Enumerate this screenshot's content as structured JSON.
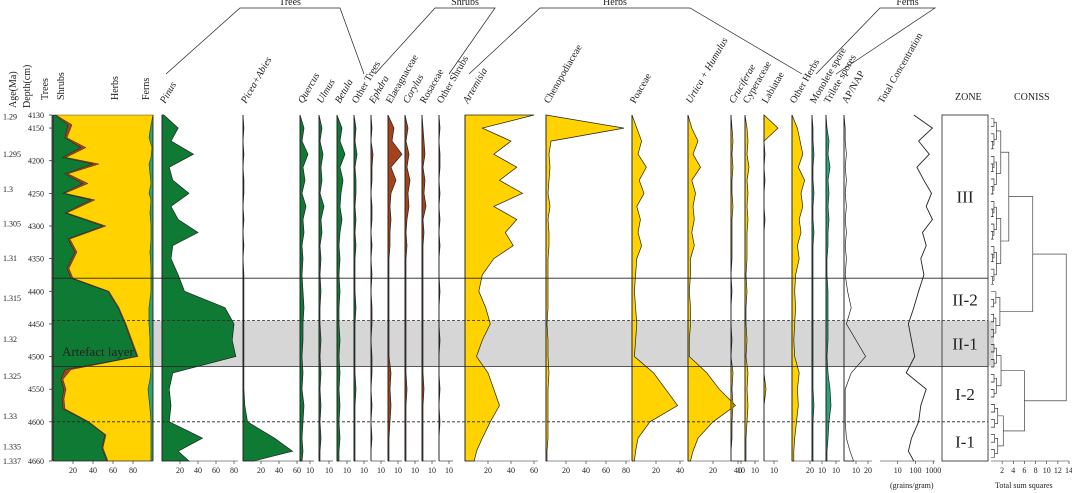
{
  "colors": {
    "trees": "#0f7a33",
    "shrubs": "#a5421b",
    "herbs": "#ffd200",
    "ferns": "#2aa37a",
    "artefact_band": "#bdbdbd",
    "line": "#222222"
  },
  "chart_data": {
    "type": "pollen-stratigraphic-diagram",
    "depth_axis": {
      "label": "Depth(cm)",
      "range": [
        4130,
        4660
      ],
      "ticks": [
        4130,
        4150,
        4200,
        4250,
        4300,
        4350,
        4400,
        4450,
        4500,
        4550,
        4600,
        4660
      ]
    },
    "age_axis": {
      "label": "Age(Ma)",
      "ticks": [
        {
          "label": "1.29",
          "depth": 4132
        },
        {
          "label": "1.295",
          "depth": 4190
        },
        {
          "label": "1.3",
          "depth": 4243
        },
        {
          "label": "1.305",
          "depth": 4296
        },
        {
          "label": "1.31",
          "depth": 4349
        },
        {
          "label": "1.315",
          "depth": 4410
        },
        {
          "label": "1.32",
          "depth": 4473
        },
        {
          "label": "1.325",
          "depth": 4530
        },
        {
          "label": "1.33",
          "depth": 4591
        },
        {
          "label": "1.335",
          "depth": 4638
        },
        {
          "label": "1.337",
          "depth": 4660
        }
      ]
    },
    "groups": [
      {
        "key": "trees",
        "label": "Trees"
      },
      {
        "key": "shrubs",
        "label": "Shrubs"
      },
      {
        "key": "herbs",
        "label": "Herbs"
      },
      {
        "key": "ferns",
        "label": "Ferns"
      }
    ],
    "summary": {
      "labels": {
        "trees": "Trees",
        "shrubs": "Shrubs",
        "herbs": "Herbs",
        "ferns": "Ferns"
      },
      "ticks": [
        20,
        40,
        60,
        80
      ],
      "depths": [
        4130,
        4145,
        4165,
        4180,
        4195,
        4205,
        4220,
        4235,
        4250,
        4260,
        4280,
        4300,
        4320,
        4340,
        4365,
        4380,
        4400,
        4425,
        4450,
        4475,
        4500,
        4520,
        4535,
        4550,
        4565,
        4580,
        4600,
        4620,
        4640,
        4660
      ],
      "trees": [
        2,
        15,
        12,
        28,
        10,
        40,
        12,
        30,
        10,
        38,
        12,
        50,
        15,
        22,
        14,
        18,
        55,
        65,
        72,
        78,
        84,
        12,
        8,
        11,
        9,
        10,
        35,
        52,
        49,
        54
      ],
      "shrubs": [
        1,
        4,
        2,
        5,
        3,
        6,
        3,
        5,
        2,
        4,
        2,
        3,
        2,
        2,
        2,
        2,
        1,
        1,
        1,
        1,
        1,
        6,
        2,
        2,
        2,
        2,
        1,
        1,
        1,
        1
      ],
      "ferns": [
        0,
        2,
        4,
        1,
        2,
        4,
        3,
        2,
        4,
        2,
        3,
        2,
        2,
        3,
        2,
        2,
        2,
        4,
        4,
        3,
        3,
        2,
        3,
        5,
        4,
        3,
        2,
        2,
        2,
        2
      ]
    },
    "taxa_series_depths": [
      4130,
      4150,
      4170,
      4190,
      4210,
      4230,
      4250,
      4270,
      4290,
      4310,
      4330,
      4350,
      4375,
      4400,
      4425,
      4450,
      4475,
      4500,
      4525,
      4550,
      4575,
      4600,
      4625,
      4645,
      4660
    ],
    "taxa": [
      {
        "name": "Pinus",
        "italic": true,
        "group": "trees",
        "ticks": [
          20,
          40,
          60,
          80
        ],
        "values": [
          2,
          18,
          10,
          35,
          8,
          12,
          30,
          10,
          18,
          40,
          12,
          10,
          18,
          25,
          70,
          80,
          78,
          82,
          12,
          8,
          10,
          8,
          45,
          18,
          30
        ]
      },
      {
        "name": "Picea+Abies",
        "italic": true,
        "group": "trees",
        "ticks": [
          20,
          40,
          60
        ],
        "values": [
          0,
          1,
          0,
          1,
          0,
          1,
          1,
          0,
          1,
          0,
          1,
          0,
          1,
          1,
          1,
          1,
          1,
          1,
          1,
          1,
          2,
          5,
          35,
          55,
          12
        ]
      },
      {
        "name": "Quercus",
        "italic": true,
        "group": "trees",
        "ticks": [
          10
        ],
        "values": [
          0,
          4,
          2,
          8,
          3,
          5,
          2,
          6,
          3,
          4,
          2,
          3,
          2,
          3,
          4,
          3,
          3,
          2,
          3,
          2,
          4,
          3,
          2,
          3,
          2
        ]
      },
      {
        "name": "Ulmus",
        "italic": true,
        "group": "trees",
        "ticks": [
          10
        ],
        "values": [
          0,
          3,
          1,
          4,
          2,
          3,
          1,
          5,
          2,
          3,
          1,
          2,
          1,
          2,
          1,
          1,
          2,
          1,
          2,
          1,
          2,
          1,
          2,
          1,
          1
        ]
      },
      {
        "name": "Betula",
        "italic": true,
        "group": "trees",
        "ticks": [
          10
        ],
        "values": [
          0,
          5,
          3,
          8,
          3,
          6,
          4,
          3,
          5,
          3,
          2,
          3,
          2,
          3,
          2,
          2,
          3,
          2,
          3,
          2,
          3,
          2,
          3,
          2,
          2
        ]
      },
      {
        "name": "Other Trees",
        "italic": false,
        "group": "trees",
        "ticks": [
          10
        ],
        "values": [
          0,
          2,
          1,
          3,
          1,
          2,
          2,
          1,
          2,
          1,
          2,
          1,
          1,
          1,
          2,
          1,
          1,
          1,
          1,
          2,
          1,
          1,
          1,
          1,
          1
        ]
      },
      {
        "name": "Ephdra",
        "italic": true,
        "group": "shrubs",
        "ticks": [
          10
        ],
        "values": [
          0,
          1,
          0,
          2,
          1,
          1,
          0,
          1,
          1,
          0,
          1,
          0,
          1,
          0,
          1,
          1,
          0,
          1,
          1,
          0,
          1,
          0,
          1,
          0,
          0
        ]
      },
      {
        "name": "Elaeagnaceae",
        "italic": false,
        "group": "shrubs",
        "ticks": [
          10
        ],
        "values": [
          0,
          6,
          4,
          14,
          3,
          8,
          3,
          2,
          3,
          2,
          2,
          1,
          1,
          1,
          1,
          1,
          1,
          1,
          3,
          2,
          3,
          2,
          1,
          1,
          1
        ]
      },
      {
        "name": "Corylus",
        "italic": true,
        "group": "shrubs",
        "ticks": [
          10
        ],
        "values": [
          0,
          3,
          1,
          4,
          2,
          5,
          3,
          4,
          2,
          1,
          2,
          1,
          1,
          1,
          1,
          1,
          1,
          1,
          1,
          2,
          1,
          1,
          1,
          1,
          1
        ]
      },
      {
        "name": "Rosaceae",
        "italic": false,
        "group": "shrubs",
        "ticks": [
          10
        ],
        "values": [
          0,
          1,
          2,
          3,
          1,
          3,
          2,
          4,
          1,
          2,
          1,
          1,
          1,
          1,
          1,
          1,
          1,
          1,
          1,
          2,
          1,
          1,
          1,
          1,
          1
        ]
      },
      {
        "name": "Other Shrubs",
        "italic": false,
        "group": "shrubs",
        "ticks": [
          10
        ],
        "values": [
          0,
          1,
          0,
          1,
          1,
          0,
          1,
          0,
          1,
          0,
          1,
          0,
          0,
          1,
          0,
          0,
          1,
          0,
          0,
          1,
          0,
          1,
          0,
          0,
          0
        ]
      },
      {
        "name": "Artemisia",
        "italic": true,
        "group": "herbs",
        "ticks": [
          20,
          40,
          60
        ],
        "values": [
          60,
          15,
          40,
          25,
          45,
          30,
          50,
          25,
          45,
          35,
          42,
          25,
          15,
          12,
          18,
          22,
          15,
          10,
          20,
          25,
          30,
          22,
          15,
          10,
          8
        ]
      },
      {
        "name": "Chenopodiaceae",
        "italic": false,
        "group": "herbs",
        "ticks": [
          20,
          40,
          60,
          80
        ],
        "values": [
          0,
          78,
          5,
          3,
          4,
          3,
          2,
          4,
          2,
          3,
          3,
          2,
          2,
          2,
          2,
          1,
          2,
          2,
          3,
          2,
          2,
          2,
          2,
          1,
          1
        ]
      },
      {
        "name": "Poaceae",
        "italic": false,
        "group": "herbs",
        "ticks": [
          20,
          40
        ],
        "values": [
          0,
          4,
          8,
          5,
          12,
          6,
          10,
          4,
          7,
          5,
          8,
          4,
          3,
          2,
          3,
          4,
          3,
          2,
          18,
          28,
          38,
          15,
          5,
          3,
          2
        ]
      },
      {
        "name": "Urtica + Humulus",
        "italic": true,
        "group": "herbs",
        "ticks": [
          20,
          40
        ],
        "values": [
          0,
          3,
          8,
          4,
          10,
          3,
          6,
          4,
          5,
          3,
          5,
          2,
          2,
          1,
          2,
          2,
          1,
          1,
          15,
          25,
          38,
          20,
          8,
          4,
          2
        ]
      },
      {
        "name": "Cruciferae",
        "italic": true,
        "group": "herbs",
        "ticks": [
          10
        ],
        "values": [
          0,
          1,
          2,
          1,
          2,
          1,
          1,
          2,
          1,
          1,
          1,
          1,
          0,
          1,
          0,
          0,
          1,
          0,
          2,
          1,
          2,
          1,
          1,
          0,
          0
        ]
      },
      {
        "name": "Cyperaceae",
        "italic": false,
        "group": "herbs",
        "ticks": [
          10
        ],
        "values": [
          0,
          2,
          3,
          2,
          4,
          2,
          3,
          2,
          3,
          2,
          2,
          2,
          1,
          2,
          1,
          1,
          2,
          1,
          3,
          2,
          3,
          2,
          1,
          1,
          1
        ]
      },
      {
        "name": "Labiatae",
        "italic": false,
        "group": "herbs",
        "ticks": [
          10
        ],
        "values": [
          0,
          14,
          0,
          1,
          0,
          1,
          0,
          0,
          1,
          0,
          0,
          0,
          0,
          0,
          0,
          0,
          0,
          0,
          0,
          2,
          0,
          0,
          0,
          0,
          0
        ]
      },
      {
        "name": "Other Herbs",
        "italic": false,
        "group": "herbs",
        "ticks": [
          20
        ],
        "values": [
          0,
          6,
          9,
          12,
          7,
          14,
          10,
          12,
          8,
          10,
          6,
          8,
          4,
          3,
          4,
          3,
          2,
          3,
          8,
          6,
          7,
          5,
          3,
          2,
          2
        ]
      },
      {
        "name": "Monolete spore",
        "italic": false,
        "group": "ferns",
        "ticks": [
          10
        ],
        "values": [
          0,
          1,
          1,
          2,
          1,
          1,
          2,
          1,
          1,
          2,
          1,
          1,
          1,
          1,
          1,
          1,
          1,
          1,
          1,
          1,
          2,
          1,
          1,
          1,
          1
        ]
      },
      {
        "name": "Trilete spores",
        "italic": false,
        "group": "ferns",
        "ticks": [
          10
        ],
        "values": [
          0,
          1,
          3,
          2,
          4,
          2,
          3,
          2,
          3,
          2,
          2,
          1,
          1,
          2,
          2,
          2,
          2,
          1,
          2,
          4,
          5,
          3,
          2,
          1,
          1
        ]
      },
      {
        "name": "AP/NAP",
        "italic": false,
        "group": "ratio",
        "ticks": [
          10,
          20
        ],
        "values": [
          0,
          1,
          1,
          2,
          1,
          2,
          1,
          2,
          1,
          2,
          1,
          2,
          1,
          3,
          6,
          2,
          10,
          18,
          6,
          1,
          1,
          1,
          2,
          5,
          8
        ]
      }
    ],
    "total_concentration": {
      "label": "Total Concentration",
      "unit": "(grains/gram)",
      "scale": "log",
      "ticks": [
        10,
        100,
        1000
      ],
      "depths": [
        4130,
        4150,
        4170,
        4190,
        4210,
        4230,
        4250,
        4270,
        4290,
        4310,
        4330,
        4350,
        4375,
        4400,
        4425,
        4450,
        4475,
        4500,
        4525,
        4550,
        4575,
        4600,
        4625,
        4645,
        4660
      ],
      "values": [
        80,
        900,
        150,
        600,
        120,
        300,
        800,
        400,
        900,
        250,
        400,
        200,
        300,
        150,
        80,
        40,
        60,
        90,
        30,
        400,
        200,
        150,
        60,
        40,
        80
      ]
    },
    "zones": {
      "label": "ZONE",
      "items": [
        {
          "name": "III",
          "top": 4130,
          "bottom": 4380
        },
        {
          "name": "II-2",
          "top": 4380,
          "bottom": 4445
        },
        {
          "name": "II-1",
          "top": 4445,
          "bottom": 4515
        },
        {
          "name": "I-2",
          "top": 4515,
          "bottom": 4600
        },
        {
          "name": "I-1",
          "top": 4600,
          "bottom": 4660
        }
      ]
    },
    "coniss": {
      "label": "CONISS",
      "xlabel": "Total sum squares",
      "ticks": [
        2,
        4,
        6,
        8,
        10,
        12,
        14
      ]
    },
    "artefact_layer": {
      "label": "Artefact layer",
      "top": 4445,
      "bottom": 4515
    }
  }
}
